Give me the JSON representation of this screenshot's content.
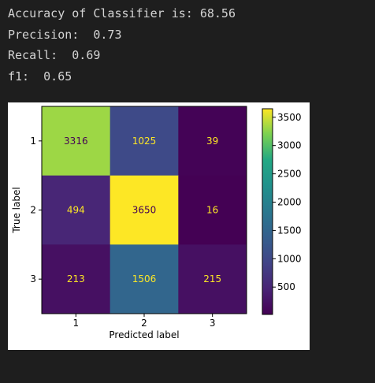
{
  "output": {
    "lines": [
      "Accuracy of Classifier is: 68.56",
      "Precision:  0.73",
      "Recall:  0.69",
      "f1:  0.65"
    ]
  },
  "chart_data": {
    "type": "heatmap",
    "title": "",
    "xlabel": "Predicted label",
    "ylabel": "True label",
    "x_categories": [
      "1",
      "2",
      "3"
    ],
    "y_categories": [
      "1",
      "2",
      "3"
    ],
    "matrix": [
      [
        3316,
        1025,
        39
      ],
      [
        494,
        3650,
        16
      ],
      [
        213,
        1506,
        215
      ]
    ],
    "colormap": "viridis",
    "colorbar": {
      "range": [
        16,
        3650
      ],
      "ticks": [
        500,
        1000,
        1500,
        2000,
        2500,
        3000,
        3500
      ]
    },
    "text_colors": {
      "light_cell": "#440154",
      "dark_cell": "#fde725"
    }
  }
}
